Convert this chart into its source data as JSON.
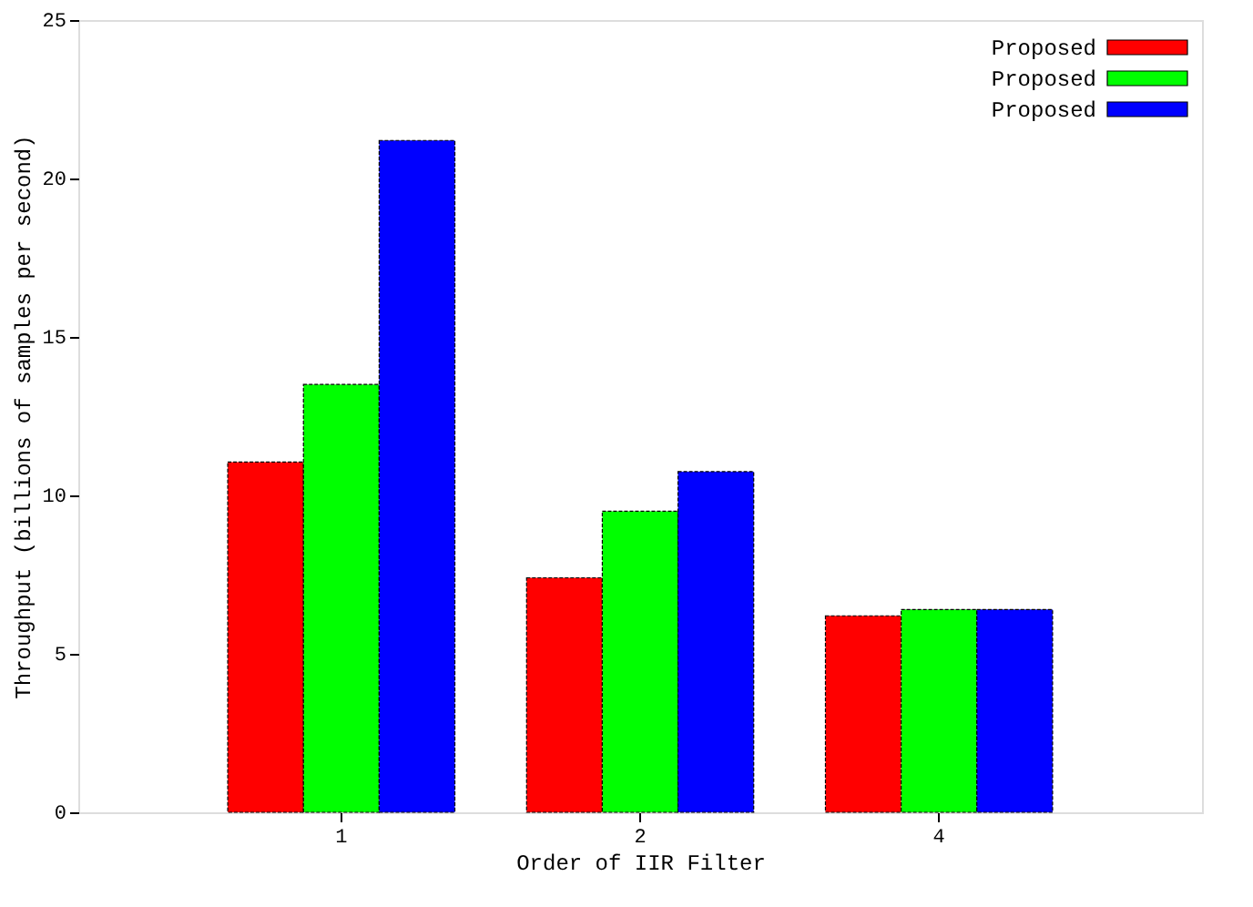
{
  "chart_data": {
    "type": "bar",
    "xlabel": "Order of IIR Filter",
    "ylabel": "Throughput (billions of samples per second)",
    "categories": [
      "1",
      "2",
      "4"
    ],
    "series": [
      {
        "name": "Proposed",
        "color": "#ff0000",
        "values": [
          11.05,
          7.4,
          6.2
        ]
      },
      {
        "name": "Proposed",
        "color": "#00ff00",
        "values": [
          13.5,
          9.5,
          6.4
        ]
      },
      {
        "name": "Proposed",
        "color": "#0000ff",
        "values": [
          21.2,
          10.75,
          6.4
        ]
      }
    ],
    "ylim": [
      0,
      25
    ],
    "yticks": [
      0,
      5,
      10,
      15,
      20,
      25
    ],
    "legend": "top right",
    "grid": false
  }
}
